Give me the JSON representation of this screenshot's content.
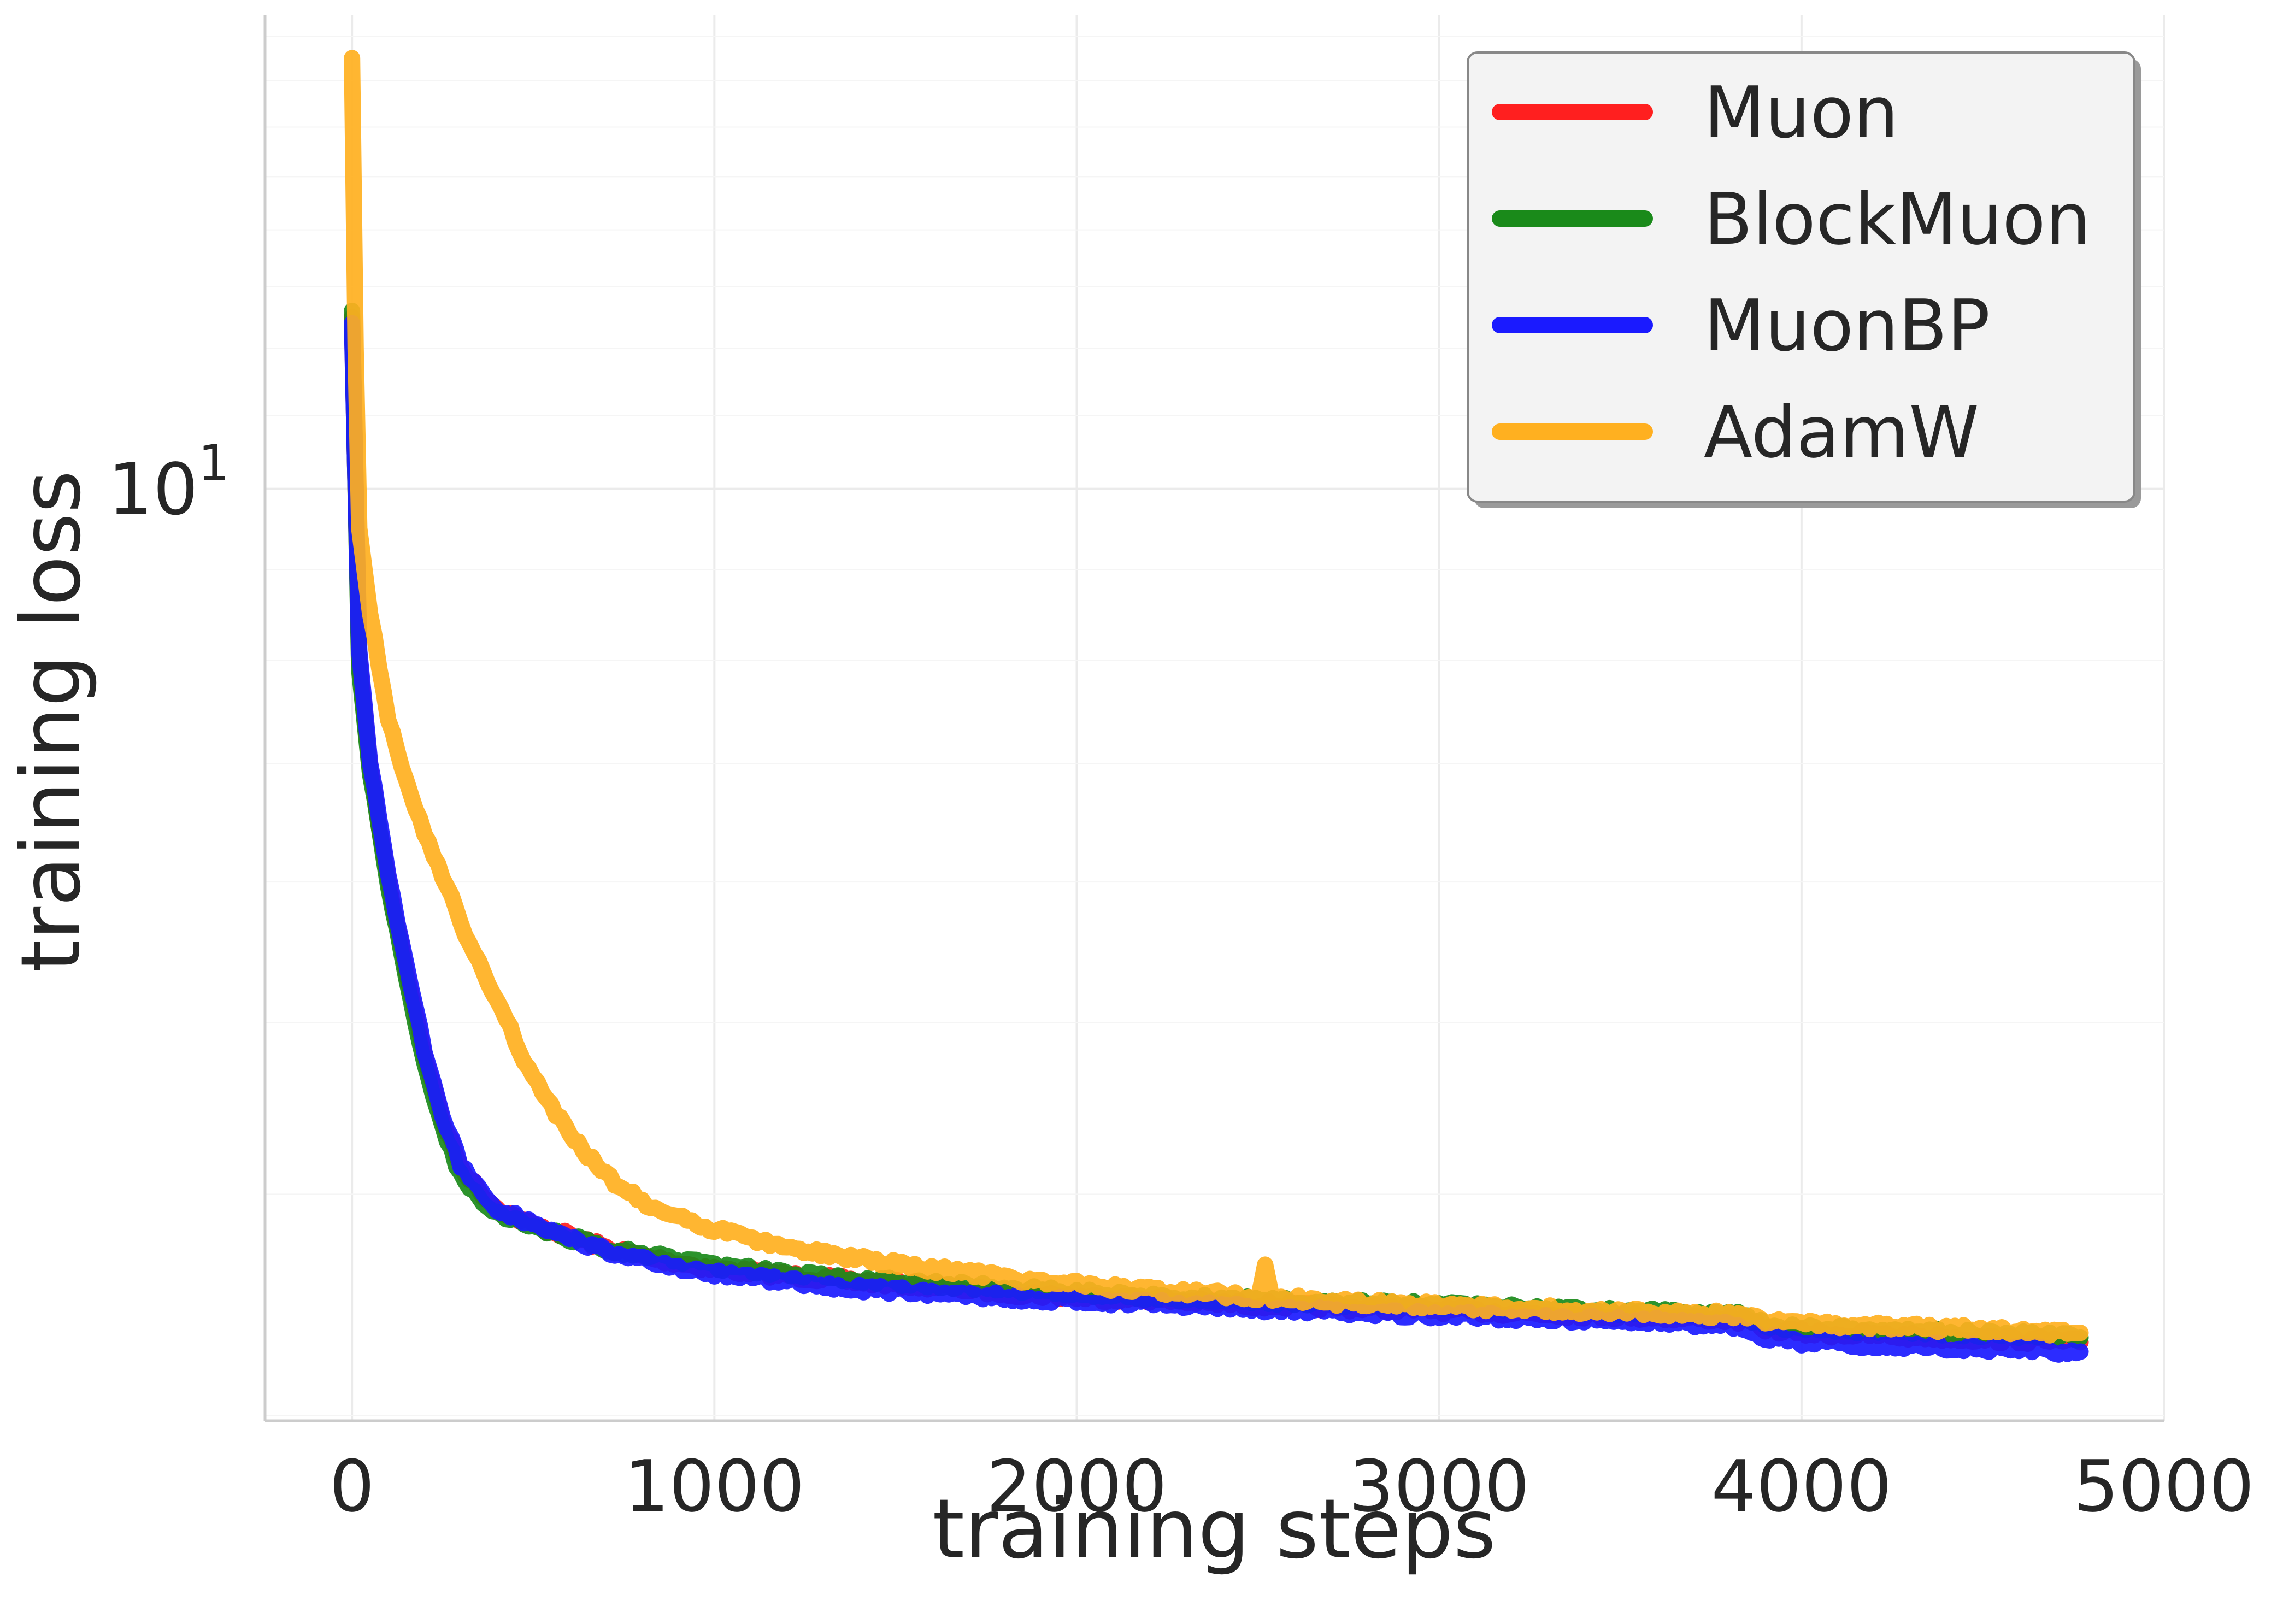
{
  "chart_data": {
    "type": "line",
    "xlabel": "training steps",
    "ylabel": "training loss",
    "xlim": [
      -240,
      5000
    ],
    "ylim": [
      2.98,
      18.5
    ],
    "yscale": "log",
    "grid": true,
    "legend_position": "top-right",
    "x_ticks": [
      {
        "value": 0,
        "label": "0"
      },
      {
        "value": 1000,
        "label": "1000"
      },
      {
        "value": 2000,
        "label": "2000"
      },
      {
        "value": 3000,
        "label": "3000"
      },
      {
        "value": 4000,
        "label": "4000"
      },
      {
        "value": 5000,
        "label": "5000"
      }
    ],
    "y_ticks": [
      {
        "value": 10,
        "base": "10",
        "exponent": "1"
      }
    ],
    "series": [
      {
        "name": "Muon",
        "color": "#ff1f1f",
        "x": [
          0,
          20,
          50,
          100,
          150,
          200,
          250,
          300,
          350,
          400,
          500,
          600,
          700,
          800,
          900,
          1000,
          1200,
          1400,
          1600,
          1800,
          2000,
          2200,
          2400,
          2600,
          2800,
          3000,
          3200,
          3400,
          3600,
          3800,
          3850,
          3900,
          4000,
          4200,
          4400,
          4600,
          4770
        ],
        "y": [
          12.5,
          8.0,
          6.95,
          6.0,
          5.35,
          4.8,
          4.4,
          4.15,
          4.02,
          3.93,
          3.84,
          3.79,
          3.73,
          3.69,
          3.66,
          3.63,
          3.6,
          3.57,
          3.55,
          3.52,
          3.5,
          3.49,
          3.47,
          3.46,
          3.45,
          3.44,
          3.43,
          3.42,
          3.41,
          3.4,
          3.39,
          3.36,
          3.34,
          3.33,
          3.32,
          3.31,
          3.3
        ]
      },
      {
        "name": "BlockMuon",
        "color": "#1a8a1a",
        "x": [
          0,
          20,
          50,
          100,
          150,
          200,
          250,
          300,
          350,
          400,
          500,
          600,
          700,
          800,
          900,
          1000,
          1200,
          1400,
          1600,
          1800,
          2000,
          2200,
          2400,
          2600,
          2800,
          3000,
          3200,
          3400,
          3600,
          3800,
          3850,
          3900,
          4000,
          4200,
          4400,
          4600,
          4770
        ],
        "y": [
          12.6,
          7.9,
          6.9,
          5.95,
          5.3,
          4.75,
          4.35,
          4.1,
          3.98,
          3.9,
          3.83,
          3.78,
          3.73,
          3.7,
          3.67,
          3.64,
          3.61,
          3.58,
          3.56,
          3.54,
          3.52,
          3.5,
          3.49,
          3.48,
          3.47,
          3.46,
          3.45,
          3.44,
          3.43,
          3.42,
          3.41,
          3.38,
          3.36,
          3.35,
          3.34,
          3.33,
          3.32
        ]
      },
      {
        "name": "MuonBP",
        "color": "#1a1aff",
        "x": [
          0,
          20,
          50,
          100,
          150,
          200,
          250,
          300,
          350,
          400,
          500,
          600,
          700,
          800,
          900,
          1000,
          1200,
          1400,
          1600,
          1800,
          2000,
          2200,
          2400,
          2600,
          2800,
          3000,
          3200,
          3400,
          3600,
          3800,
          3850,
          3900,
          4000,
          4200,
          4400,
          4600,
          4770
        ],
        "y": [
          12.4,
          8.1,
          7.0,
          6.05,
          5.4,
          4.82,
          4.42,
          4.16,
          4.03,
          3.93,
          3.84,
          3.78,
          3.72,
          3.68,
          3.64,
          3.61,
          3.57,
          3.54,
          3.52,
          3.5,
          3.48,
          3.47,
          3.46,
          3.44,
          3.43,
          3.42,
          3.41,
          3.4,
          3.39,
          3.37,
          3.35,
          3.32,
          3.3,
          3.29,
          3.28,
          3.27,
          3.26
        ]
      },
      {
        "name": "AdamW",
        "color": "#ffb020",
        "x": [
          0,
          10,
          20,
          50,
          100,
          150,
          200,
          250,
          300,
          350,
          400,
          500,
          600,
          700,
          800,
          900,
          1000,
          1200,
          1400,
          1600,
          1800,
          2000,
          2200,
          2400,
          2500,
          2520,
          2540,
          2600,
          2800,
          3000,
          3200,
          3400,
          3600,
          3800,
          3850,
          3900,
          4000,
          4200,
          4400,
          4600,
          4770
        ],
        "y": [
          17.5,
          12.0,
          9.5,
          8.5,
          7.4,
          6.85,
          6.4,
          6.05,
          5.7,
          5.4,
          5.15,
          4.65,
          4.32,
          4.1,
          3.96,
          3.88,
          3.82,
          3.73,
          3.68,
          3.63,
          3.59,
          3.56,
          3.53,
          3.51,
          3.5,
          3.65,
          3.5,
          3.49,
          3.47,
          3.46,
          3.45,
          3.44,
          3.43,
          3.42,
          3.41,
          3.39,
          3.38,
          3.37,
          3.36,
          3.35,
          3.34
        ]
      }
    ]
  }
}
